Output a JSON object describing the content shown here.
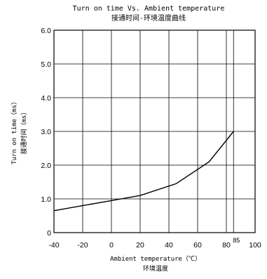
{
  "chart_data": {
    "type": "line",
    "title": "Turn on time Vs. Ambient temperature",
    "subtitle": "接通时间-环境温度曲线",
    "xlabel": "Ambient temperature（℃）",
    "xlabel_cn": "环境温度",
    "ylabel": "Turn on time（ms）",
    "ylabel_cn": "接通时间（ms）",
    "xlim": [
      -40,
      100
    ],
    "ylim": [
      0,
      6
    ],
    "xticks": [
      -40,
      -20,
      0,
      20,
      40,
      60,
      80,
      100
    ],
    "yticks": [
      0,
      1.0,
      2.0,
      3.0,
      4.0,
      5.0,
      6.0
    ],
    "ytick_labels": [
      "0",
      "1.0",
      "2.0",
      "3.0",
      "4.0",
      "5.0",
      "6.0"
    ],
    "x_gridlines": [
      -20,
      0,
      20,
      40,
      60,
      80,
      85
    ],
    "y_gridlines": [
      1,
      2,
      3,
      4,
      5
    ],
    "grid": true,
    "annotations": [
      {
        "text": "85",
        "x": 85
      }
    ],
    "series": [
      {
        "x": [
          -40,
          -20,
          0,
          20,
          45,
          68,
          85
        ],
        "y": [
          0.65,
          0.8,
          0.95,
          1.1,
          1.45,
          2.1,
          3.0
        ]
      }
    ]
  }
}
